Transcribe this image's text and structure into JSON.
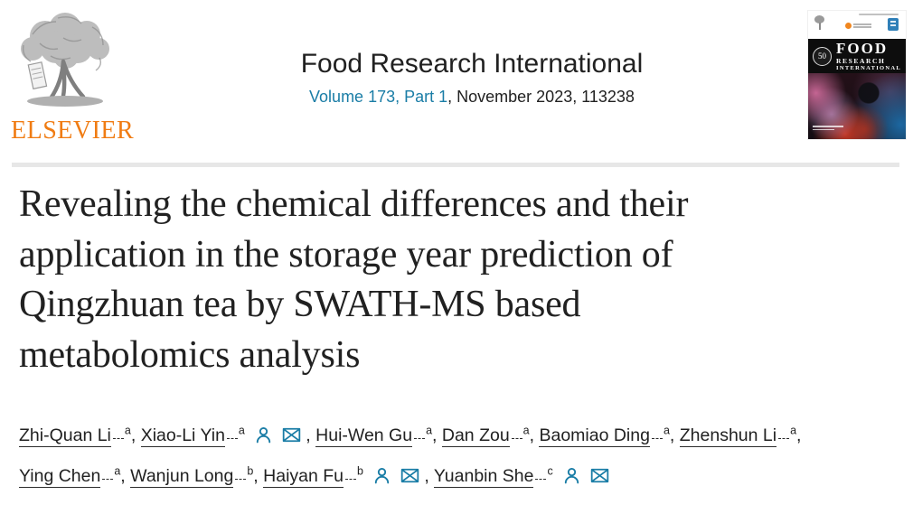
{
  "header": {
    "publisher": "ELSEVIER",
    "journal_title": "Food Research International",
    "volume_link": "Volume 173, Part 1",
    "issue_rest": ", November 2023, 113238"
  },
  "cover": {
    "band_line1": "FOOD",
    "band_line2": "RESEARCH",
    "band_line3": "INTERNATIONAL",
    "anniversary_badge": "50"
  },
  "article": {
    "title": "Revealing the chemical differences and their application in the storage year prediction of Qingzhuan tea by SWATH-MS based metabolomics analysis",
    "title_lines": [
      "Revealing the chemical differences and their",
      "application in the storage year prediction of",
      "Qingzhuan tea by SWATH-MS based",
      "metabolomics analysis"
    ]
  },
  "authors": [
    {
      "name": "Zhi-Quan Li",
      "affiliation_sup": "a",
      "icons": []
    },
    {
      "name": "Xiao-Li Yin",
      "affiliation_sup": "a",
      "icons": [
        "person-icon",
        "envelope-icon"
      ]
    },
    {
      "name": "Hui-Wen Gu",
      "affiliation_sup": "a",
      "icons": []
    },
    {
      "name": "Dan Zou",
      "affiliation_sup": "a",
      "icons": []
    },
    {
      "name": "Baomiao Ding",
      "affiliation_sup": "a",
      "icons": []
    },
    {
      "name": "Zhenshun Li",
      "affiliation_sup": "a",
      "icons": [],
      "break_after": true
    },
    {
      "name": "Ying Chen",
      "affiliation_sup": "a",
      "icons": []
    },
    {
      "name": "Wanjun Long",
      "affiliation_sup": "b",
      "icons": []
    },
    {
      "name": "Haiyan Fu",
      "affiliation_sup": "b",
      "icons": [
        "person-icon",
        "envelope-icon"
      ]
    },
    {
      "name": "Yuanbin She",
      "affiliation_sup": "c",
      "icons": [
        "person-icon",
        "envelope-icon"
      ]
    }
  ],
  "colors": {
    "accent_teal": "#1a7da6",
    "elsevier_orange": "#f07c13",
    "text": "#212121",
    "divider": "#e7e7e7"
  }
}
